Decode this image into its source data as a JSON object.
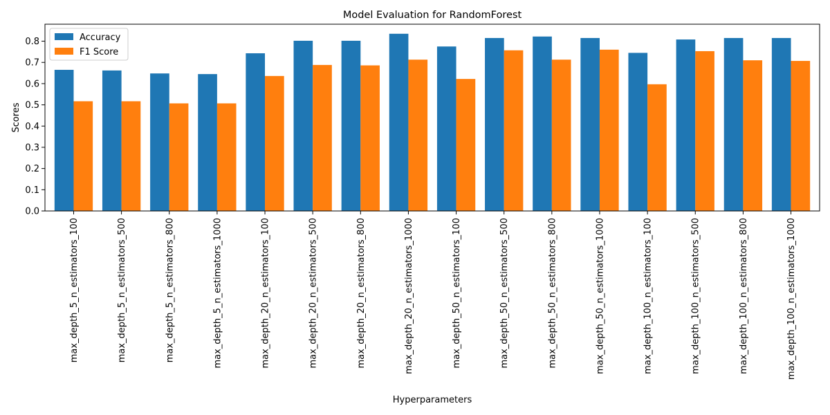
{
  "chart_data": {
    "type": "bar",
    "title": "Model Evaluation for RandomForest",
    "xlabel": "Hyperparameters",
    "ylabel": "Scores",
    "ylim": [
      0,
      0.88
    ],
    "yticks": [
      "0.0",
      "0.1",
      "0.2",
      "0.3",
      "0.4",
      "0.5",
      "0.6",
      "0.7",
      "0.8"
    ],
    "legend_position": "top-left",
    "grid": false,
    "categories": [
      "max_depth_5_n_estimators_100",
      "max_depth_5_n_estimators_500",
      "max_depth_5_n_estimators_800",
      "max_depth_5_n_estimators_1000",
      "max_depth_20_n_estimators_100",
      "max_depth_20_n_estimators_500",
      "max_depth_20_n_estimators_800",
      "max_depth_20_n_estimators_1000",
      "max_depth_50_n_estimators_100",
      "max_depth_50_n_estimators_500",
      "max_depth_50_n_estimators_800",
      "max_depth_50_n_estimators_1000",
      "max_depth_100_n_estimators_100",
      "max_depth_100_n_estimators_500",
      "max_depth_100_n_estimators_800",
      "max_depth_100_n_estimators_1000"
    ],
    "series": [
      {
        "name": "Accuracy",
        "color": "#1f77b4",
        "values": [
          0.665,
          0.662,
          0.648,
          0.645,
          0.743,
          0.802,
          0.802,
          0.835,
          0.775,
          0.815,
          0.822,
          0.815,
          0.745,
          0.808,
          0.815,
          0.815
        ]
      },
      {
        "name": "F1 Score",
        "color": "#ff7f0e",
        "values": [
          0.517,
          0.517,
          0.507,
          0.507,
          0.636,
          0.688,
          0.686,
          0.713,
          0.622,
          0.757,
          0.713,
          0.76,
          0.597,
          0.753,
          0.71,
          0.707
        ]
      }
    ]
  }
}
